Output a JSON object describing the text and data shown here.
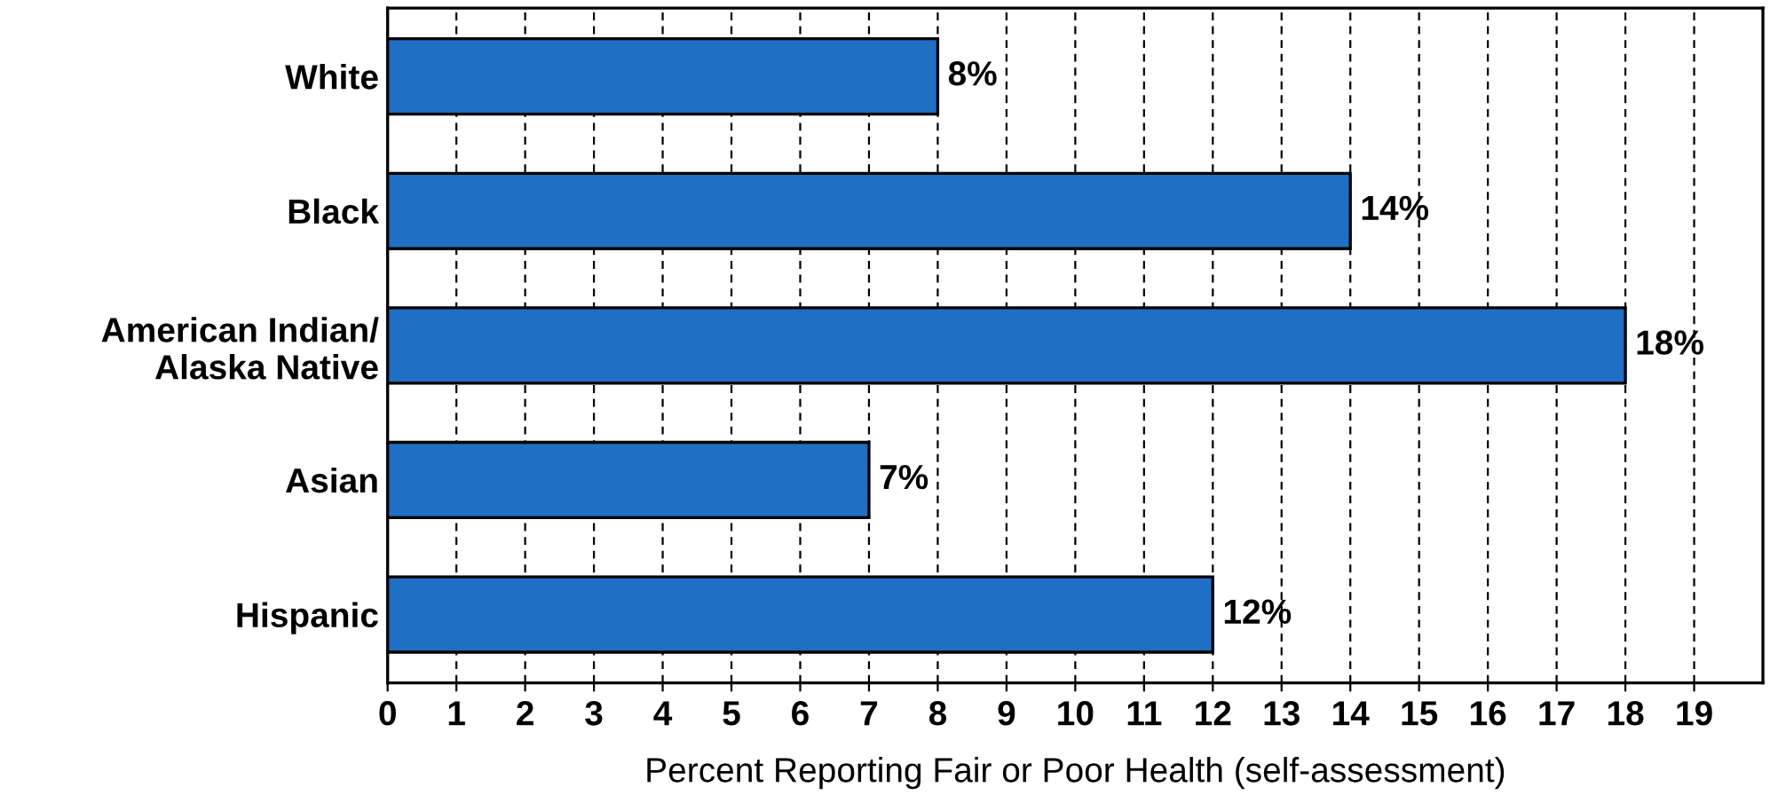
{
  "chart_data": {
    "type": "bar",
    "orientation": "horizontal",
    "xlabel": "Percent Reporting Fair or Poor Health (self-assessment)",
    "categories": [
      "White",
      "Black",
      "American Indian/\nAlaska Native",
      "Asian",
      "Hispanic"
    ],
    "values": [
      8,
      14,
      18,
      7,
      12
    ],
    "value_labels": [
      "8%",
      "14%",
      "18%",
      "7%",
      "12%"
    ],
    "color": "#1f6fc4",
    "xlim": [
      0,
      20
    ],
    "xticks": [
      0,
      1,
      2,
      3,
      4,
      5,
      6,
      7,
      8,
      9,
      10,
      11,
      12,
      13,
      14,
      15,
      16,
      17,
      18,
      19
    ],
    "grid": "x",
    "line_style": "dashed"
  }
}
